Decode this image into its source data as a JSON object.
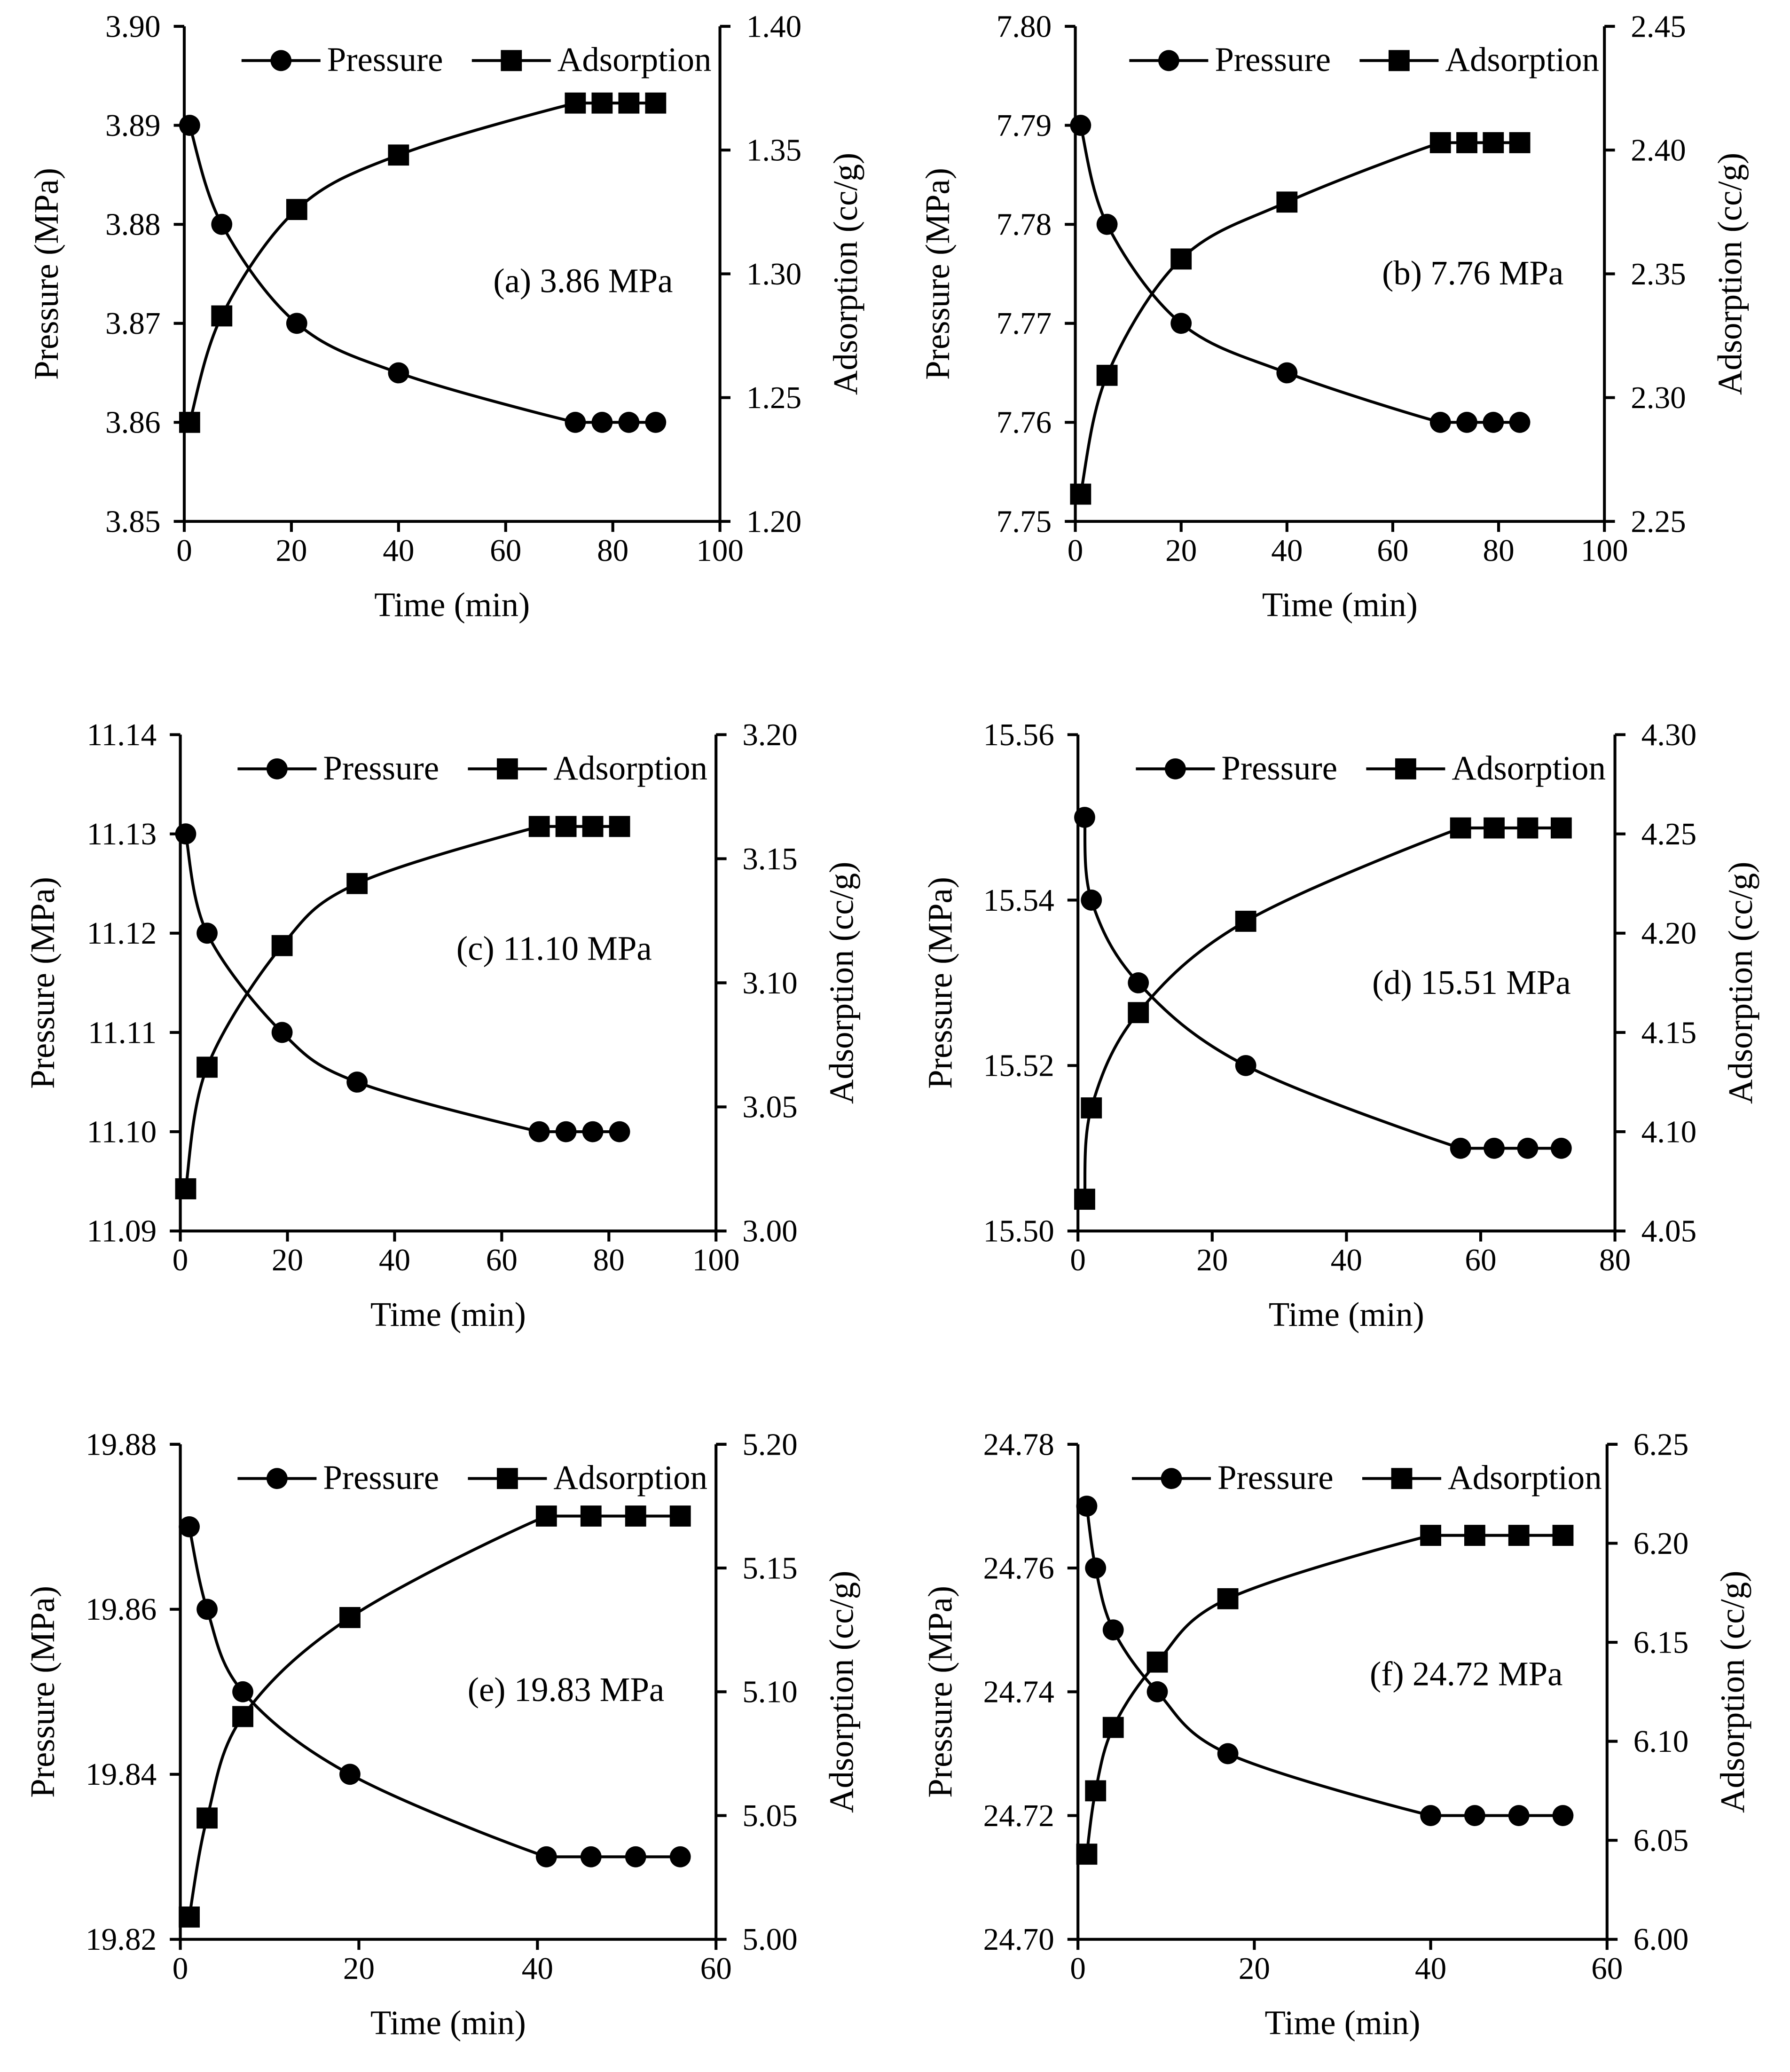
{
  "chart_data": [
    {
      "type": "line",
      "annotation": "(a) 3.86 MPa",
      "xlabel": "Time (min)",
      "ylabel": "Pressure (MPa)",
      "y2label": "Adsorption (cc/g)",
      "xlim": [
        0,
        100
      ],
      "xticks": [
        0,
        20,
        40,
        60,
        80,
        100
      ],
      "xtick_labels": [
        "0",
        "20",
        "40",
        "60",
        "80",
        "100"
      ],
      "ylim": [
        3.85,
        3.9
      ],
      "yticks": [
        3.85,
        3.86,
        3.87,
        3.88,
        3.89,
        3.9
      ],
      "ytick_labels": [
        "3.85",
        "3.86",
        "3.87",
        "3.88",
        "3.89",
        "3.90"
      ],
      "y2lim": [
        1.2,
        1.4
      ],
      "y2ticks": [
        1.2,
        1.25,
        1.3,
        1.35,
        1.4
      ],
      "y2tick_labels": [
        "1.20",
        "1.25",
        "1.30",
        "1.35",
        "1.40"
      ],
      "legend": {
        "placement": "top",
        "entries": [
          "Pressure",
          "Adsorption"
        ]
      },
      "series": [
        {
          "name": "Pressure",
          "marker": "circle",
          "axis": "left",
          "x": [
            1,
            7,
            21,
            40,
            73,
            78,
            83,
            88
          ],
          "y": [
            3.89,
            3.88,
            3.87,
            3.865,
            3.86,
            3.86,
            3.86,
            3.86
          ]
        },
        {
          "name": "Adsorption",
          "marker": "square",
          "axis": "right",
          "x": [
            1,
            7,
            21,
            40,
            73,
            78,
            83,
            88
          ],
          "y": [
            1.24,
            1.283,
            1.326,
            1.348,
            1.369,
            1.369,
            1.369,
            1.369
          ]
        }
      ]
    },
    {
      "type": "line",
      "annotation": "(b) 7.76 MPa",
      "xlabel": "Time (min)",
      "ylabel": "Pressure (MPa)",
      "y2label": "Adsorption (cc/g)",
      "xlim": [
        0,
        100
      ],
      "xticks": [
        0,
        20,
        40,
        60,
        80,
        100
      ],
      "xtick_labels": [
        "0",
        "20",
        "40",
        "60",
        "80",
        "100"
      ],
      "ylim": [
        7.75,
        7.8
      ],
      "yticks": [
        7.75,
        7.76,
        7.77,
        7.78,
        7.79,
        7.8
      ],
      "ytick_labels": [
        "7.75",
        "7.76",
        "7.77",
        "7.78",
        "7.79",
        "7.80"
      ],
      "y2lim": [
        2.25,
        2.45
      ],
      "y2ticks": [
        2.25,
        2.3,
        2.35,
        2.4,
        2.45
      ],
      "y2tick_labels": [
        "2.25",
        "2.30",
        "2.35",
        "2.40",
        "2.45"
      ],
      "legend": {
        "placement": "top",
        "entries": [
          "Pressure",
          "Adsorption"
        ]
      },
      "series": [
        {
          "name": "Pressure",
          "marker": "circle",
          "axis": "left",
          "x": [
            1,
            6,
            20,
            40,
            69,
            74,
            79,
            84
          ],
          "y": [
            7.79,
            7.78,
            7.77,
            7.765,
            7.76,
            7.76,
            7.76,
            7.76
          ]
        },
        {
          "name": "Adsorption",
          "marker": "square",
          "axis": "right",
          "x": [
            1,
            6,
            20,
            40,
            69,
            74,
            79,
            84
          ],
          "y": [
            2.261,
            2.309,
            2.356,
            2.379,
            2.403,
            2.403,
            2.403,
            2.403
          ]
        }
      ]
    },
    {
      "type": "line",
      "annotation": "(c) 11.10 MPa",
      "xlabel": "Time (min)",
      "ylabel": "Pressure (MPa)",
      "y2label": "Adsorption (cc/g)",
      "xlim": [
        0,
        100
      ],
      "xticks": [
        0,
        20,
        40,
        60,
        80,
        100
      ],
      "xtick_labels": [
        "0",
        "20",
        "40",
        "60",
        "80",
        "100"
      ],
      "ylim": [
        11.09,
        11.14
      ],
      "yticks": [
        11.09,
        11.1,
        11.11,
        11.12,
        11.13,
        11.14
      ],
      "ytick_labels": [
        "11.09",
        "11.10",
        "11.11",
        "11.12",
        "11.13",
        "11.14"
      ],
      "y2lim": [
        3.0,
        3.2
      ],
      "y2ticks": [
        3.0,
        3.05,
        3.1,
        3.15,
        3.2
      ],
      "y2tick_labels": [
        "3.00",
        "3.05",
        "3.10",
        "3.15",
        "3.20"
      ],
      "legend": {
        "placement": "top",
        "entries": [
          "Pressure",
          "Adsorption"
        ]
      },
      "series": [
        {
          "name": "Pressure",
          "marker": "circle",
          "axis": "left",
          "x": [
            1,
            5,
            19,
            33,
            67,
            72,
            77,
            82
          ],
          "y": [
            11.13,
            11.12,
            11.11,
            11.105,
            11.1,
            11.1,
            11.1,
            11.1
          ]
        },
        {
          "name": "Adsorption",
          "marker": "square",
          "axis": "right",
          "x": [
            1,
            5,
            19,
            33,
            67,
            72,
            77,
            82
          ],
          "y": [
            3.017,
            3.066,
            3.115,
            3.14,
            3.163,
            3.163,
            3.163,
            3.163
          ]
        }
      ]
    },
    {
      "type": "line",
      "annotation": "(d) 15.51 MPa",
      "xlabel": "Time (min)",
      "ylabel": "Pressure (MPa)",
      "y2label": "Adsorption (cc/g)",
      "xlim": [
        0,
        80
      ],
      "xticks": [
        0,
        20,
        40,
        60,
        80
      ],
      "xtick_labels": [
        "0",
        "20",
        "40",
        "60",
        "80"
      ],
      "ylim": [
        15.5,
        15.56
      ],
      "yticks": [
        15.5,
        15.52,
        15.54,
        15.56
      ],
      "ytick_labels": [
        "15.50",
        "15.52",
        "15.54",
        "15.56"
      ],
      "y2lim": [
        4.05,
        4.3
      ],
      "y2ticks": [
        4.05,
        4.1,
        4.15,
        4.2,
        4.25,
        4.3
      ],
      "y2tick_labels": [
        "4.05",
        "4.10",
        "4.15",
        "4.20",
        "4.25",
        "4.30"
      ],
      "legend": {
        "placement": "top",
        "entries": [
          "Pressure",
          "Adsorption"
        ]
      },
      "series": [
        {
          "name": "Pressure",
          "marker": "circle",
          "axis": "left",
          "x": [
            1,
            2,
            9,
            25,
            57,
            62,
            67,
            72
          ],
          "y": [
            15.55,
            15.54,
            15.53,
            15.52,
            15.51,
            15.51,
            15.51,
            15.51
          ]
        },
        {
          "name": "Adsorption",
          "marker": "square",
          "axis": "right",
          "x": [
            1,
            2,
            9,
            25,
            57,
            62,
            67,
            72
          ],
          "y": [
            4.066,
            4.112,
            4.16,
            4.206,
            4.253,
            4.253,
            4.253,
            4.253
          ]
        }
      ]
    },
    {
      "type": "line",
      "annotation": "(e) 19.83 MPa",
      "xlabel": "Time (min)",
      "ylabel": "Pressure (MPa)",
      "y2label": "Adsorption (cc/g)",
      "xlim": [
        0,
        60
      ],
      "xticks": [
        0,
        20,
        40,
        60
      ],
      "xtick_labels": [
        "0",
        "20",
        "40",
        "60"
      ],
      "ylim": [
        19.82,
        19.88
      ],
      "yticks": [
        19.82,
        19.84,
        19.86,
        19.88
      ],
      "ytick_labels": [
        "19.82",
        "19.84",
        "19.86",
        "19.88"
      ],
      "y2lim": [
        5.0,
        5.2
      ],
      "y2ticks": [
        5.0,
        5.05,
        5.1,
        5.15,
        5.2
      ],
      "y2tick_labels": [
        "5.00",
        "5.05",
        "5.10",
        "5.15",
        "5.20"
      ],
      "legend": {
        "placement": "top",
        "entries": [
          "Pressure",
          "Adsorption"
        ]
      },
      "series": [
        {
          "name": "Pressure",
          "marker": "circle",
          "axis": "left",
          "x": [
            1,
            3,
            7,
            19,
            41,
            46,
            51,
            56
          ],
          "y": [
            19.87,
            19.86,
            19.85,
            19.84,
            19.83,
            19.83,
            19.83,
            19.83
          ]
        },
        {
          "name": "Adsorption",
          "marker": "square",
          "axis": "right",
          "x": [
            1,
            3,
            7,
            19,
            41,
            46,
            51,
            56
          ],
          "y": [
            5.009,
            5.049,
            5.09,
            5.13,
            5.171,
            5.171,
            5.171,
            5.171
          ]
        }
      ]
    },
    {
      "type": "line",
      "annotation": "(f) 24.72 MPa",
      "xlabel": "Time (min)",
      "ylabel": "Pressure (MPa)",
      "y2label": "Adsorption (cc/g)",
      "xlim": [
        0,
        60
      ],
      "xticks": [
        0,
        20,
        40,
        60
      ],
      "xtick_labels": [
        "0",
        "20",
        "40",
        "60"
      ],
      "ylim": [
        24.7,
        24.78
      ],
      "yticks": [
        24.7,
        24.72,
        24.74,
        24.76,
        24.78
      ],
      "ytick_labels": [
        "24.70",
        "24.72",
        "24.74",
        "24.76",
        "24.78"
      ],
      "y2lim": [
        6.0,
        6.25
      ],
      "y2ticks": [
        6.0,
        6.05,
        6.1,
        6.15,
        6.2,
        6.25
      ],
      "y2tick_labels": [
        "6.00",
        "6.05",
        "6.10",
        "6.15",
        "6.20",
        "6.25"
      ],
      "legend": {
        "placement": "top",
        "entries": [
          "Pressure",
          "Adsorption"
        ]
      },
      "series": [
        {
          "name": "Pressure",
          "marker": "circle",
          "axis": "left",
          "x": [
            1,
            2,
            4,
            9,
            17,
            40,
            45,
            50,
            55
          ],
          "y": [
            24.77,
            24.76,
            24.75,
            24.74,
            24.73,
            24.72,
            24.72,
            24.72,
            24.72
          ]
        },
        {
          "name": "Adsorption",
          "marker": "square",
          "axis": "right",
          "x": [
            1,
            2,
            4,
            9,
            17,
            40,
            45,
            50,
            55
          ],
          "y": [
            6.043,
            6.075,
            6.107,
            6.14,
            6.172,
            6.204,
            6.204,
            6.204,
            6.204
          ]
        }
      ]
    }
  ]
}
